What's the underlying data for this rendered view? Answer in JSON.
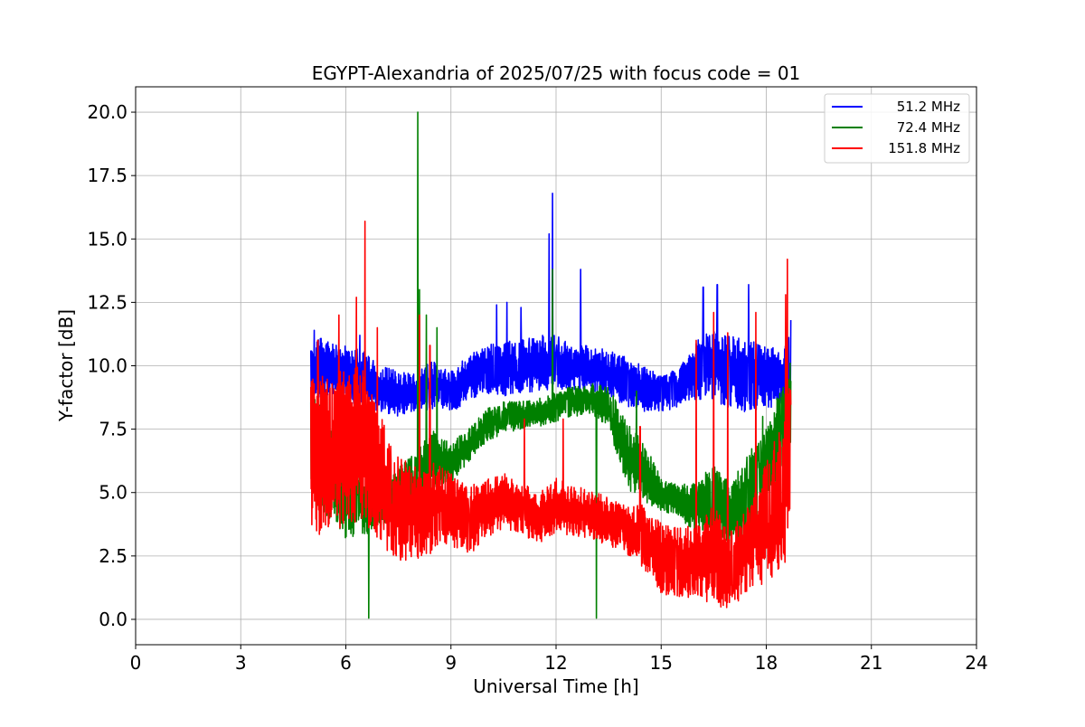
{
  "chart_data": {
    "type": "line",
    "title": "EGYPT-Alexandria of 2025/07/25 with focus code = 01",
    "xlabel": "Universal Time [h]",
    "ylabel": "Y-factor [dB]",
    "xlim": [
      0,
      24
    ],
    "ylim": [
      -1,
      21
    ],
    "xticks": [
      0,
      3,
      6,
      9,
      12,
      15,
      18,
      21,
      24
    ],
    "xtick_labels": [
      "0",
      "3",
      "6",
      "9",
      "12",
      "15",
      "18",
      "21",
      "24"
    ],
    "yticks": [
      0,
      2.5,
      5,
      7.5,
      10,
      12.5,
      15,
      17.5,
      20
    ],
    "ytick_labels": [
      "0.0",
      "2.5",
      "5.0",
      "7.5",
      "10.0",
      "12.5",
      "15.0",
      "17.5",
      "20.0"
    ],
    "grid": true,
    "legend_position": "top-right",
    "series": [
      {
        "name": "51.2 MHz",
        "color": "#0000ff",
        "band": [
          [
            5.0,
            8.6,
            11.2
          ],
          [
            5.5,
            8.8,
            11.0
          ],
          [
            6.0,
            8.6,
            10.8
          ],
          [
            6.5,
            8.3,
            10.6
          ],
          [
            7.0,
            8.2,
            10.0
          ],
          [
            7.5,
            8.0,
            9.8
          ],
          [
            8.0,
            8.1,
            9.8
          ],
          [
            8.5,
            8.3,
            10.2
          ],
          [
            9.0,
            8.1,
            9.8
          ],
          [
            9.5,
            8.6,
            10.4
          ],
          [
            10.0,
            8.9,
            10.8
          ],
          [
            10.5,
            8.8,
            11.0
          ],
          [
            11.0,
            8.9,
            11.0
          ],
          [
            11.5,
            9.0,
            11.2
          ],
          [
            12.0,
            9.1,
            11.2
          ],
          [
            12.5,
            9.0,
            10.8
          ],
          [
            13.0,
            8.9,
            10.8
          ],
          [
            13.5,
            8.8,
            10.6
          ],
          [
            14.0,
            8.4,
            10.4
          ],
          [
            14.5,
            8.2,
            10.0
          ],
          [
            15.0,
            8.2,
            9.6
          ],
          [
            15.5,
            8.3,
            9.9
          ],
          [
            16.0,
            8.6,
            11.0
          ],
          [
            16.5,
            8.6,
            11.6
          ],
          [
            17.0,
            8.3,
            11.2
          ],
          [
            17.5,
            8.1,
            11.0
          ],
          [
            18.0,
            8.3,
            10.8
          ],
          [
            18.5,
            8.5,
            10.6
          ],
          [
            18.7,
            8.6,
            11.4
          ]
        ],
        "spikes": [
          [
            5.1,
            11.4
          ],
          [
            6.4,
            11.2
          ],
          [
            10.3,
            12.4
          ],
          [
            10.6,
            12.5
          ],
          [
            11.0,
            12.3
          ],
          [
            11.8,
            15.2
          ],
          [
            11.9,
            16.8
          ],
          [
            12.7,
            13.8
          ],
          [
            16.2,
            13.1
          ],
          [
            16.6,
            13.2
          ],
          [
            17.5,
            13.2
          ],
          [
            18.7,
            11.8
          ]
        ]
      },
      {
        "name": "72.4 MHz",
        "color": "#008000",
        "band": [
          [
            5.0,
            4.2,
            9.0
          ],
          [
            5.5,
            4.0,
            8.5
          ],
          [
            6.0,
            3.2,
            6.5
          ],
          [
            6.5,
            3.3,
            6.0
          ],
          [
            7.0,
            3.6,
            5.5
          ],
          [
            7.5,
            4.2,
            6.0
          ],
          [
            8.0,
            4.4,
            6.6
          ],
          [
            8.5,
            5.2,
            7.5
          ],
          [
            9.0,
            5.4,
            7.0
          ],
          [
            9.5,
            6.2,
            7.5
          ],
          [
            10.0,
            7.0,
            8.3
          ],
          [
            10.5,
            7.3,
            8.6
          ],
          [
            11.0,
            7.5,
            8.6
          ],
          [
            11.5,
            7.6,
            8.7
          ],
          [
            12.0,
            7.8,
            9.0
          ],
          [
            12.5,
            8.0,
            9.2
          ],
          [
            13.0,
            8.1,
            9.3
          ],
          [
            13.5,
            7.6,
            9.2
          ],
          [
            14.0,
            5.2,
            7.8
          ],
          [
            14.5,
            4.6,
            7.0
          ],
          [
            15.0,
            4.3,
            5.6
          ],
          [
            15.5,
            4.0,
            5.3
          ],
          [
            16.0,
            3.4,
            5.4
          ],
          [
            16.5,
            3.0,
            6.2
          ],
          [
            17.0,
            2.8,
            5.4
          ],
          [
            17.5,
            3.2,
            6.6
          ],
          [
            18.0,
            4.8,
            7.5
          ],
          [
            18.5,
            6.0,
            9.5
          ],
          [
            18.7,
            7.0,
            10.2
          ]
        ],
        "spikes": [
          [
            8.05,
            20.0
          ],
          [
            8.1,
            13.0
          ],
          [
            8.3,
            12.0
          ],
          [
            8.6,
            11.5
          ],
          [
            11.9,
            13.8
          ],
          [
            14.3,
            9.0
          ],
          [
            17.9,
            8.0
          ]
        ],
        "dips": [
          [
            6.65,
            0.05
          ],
          [
            13.15,
            0.05
          ],
          [
            17.2,
            2.0
          ]
        ]
      },
      {
        "name": "151.8 MHz",
        "color": "#ff0000",
        "band": [
          [
            5.0,
            3.0,
            9.5
          ],
          [
            5.5,
            3.5,
            9.8
          ],
          [
            6.0,
            3.6,
            10.0
          ],
          [
            6.5,
            3.8,
            10.0
          ],
          [
            7.0,
            3.0,
            8.0
          ],
          [
            7.5,
            2.2,
            6.5
          ],
          [
            8.0,
            2.2,
            6.0
          ],
          [
            8.5,
            2.6,
            6.2
          ],
          [
            9.0,
            2.9,
            5.8
          ],
          [
            9.5,
            2.5,
            5.2
          ],
          [
            10.0,
            3.2,
            5.6
          ],
          [
            10.5,
            3.6,
            5.8
          ],
          [
            11.0,
            3.3,
            5.4
          ],
          [
            11.5,
            3.0,
            5.0
          ],
          [
            12.0,
            3.4,
            5.6
          ],
          [
            12.5,
            3.3,
            5.2
          ],
          [
            13.0,
            3.2,
            5.2
          ],
          [
            13.5,
            2.8,
            4.8
          ],
          [
            14.0,
            2.6,
            4.6
          ],
          [
            14.5,
            2.0,
            4.5
          ],
          [
            15.0,
            1.0,
            3.8
          ],
          [
            15.5,
            0.9,
            3.6
          ],
          [
            16.0,
            0.8,
            3.8
          ],
          [
            16.5,
            0.6,
            4.5
          ],
          [
            17.0,
            0.3,
            3.5
          ],
          [
            17.5,
            1.2,
            4.6
          ],
          [
            18.0,
            1.4,
            6.5
          ],
          [
            18.5,
            2.2,
            8.0
          ],
          [
            18.7,
            2.5,
            9.5
          ]
        ],
        "spikes": [
          [
            5.2,
            11.0
          ],
          [
            5.8,
            12.0
          ],
          [
            6.3,
            12.7
          ],
          [
            6.55,
            15.7
          ],
          [
            6.9,
            11.5
          ],
          [
            8.1,
            12.0
          ],
          [
            8.4,
            10.8
          ],
          [
            11.1,
            7.9
          ],
          [
            12.2,
            7.9
          ],
          [
            14.4,
            7.6
          ],
          [
            16.0,
            11.0
          ],
          [
            16.5,
            12.1
          ],
          [
            16.9,
            11.3
          ],
          [
            17.7,
            12.1
          ],
          [
            18.55,
            12.8
          ],
          [
            18.6,
            14.2
          ]
        ]
      }
    ]
  }
}
